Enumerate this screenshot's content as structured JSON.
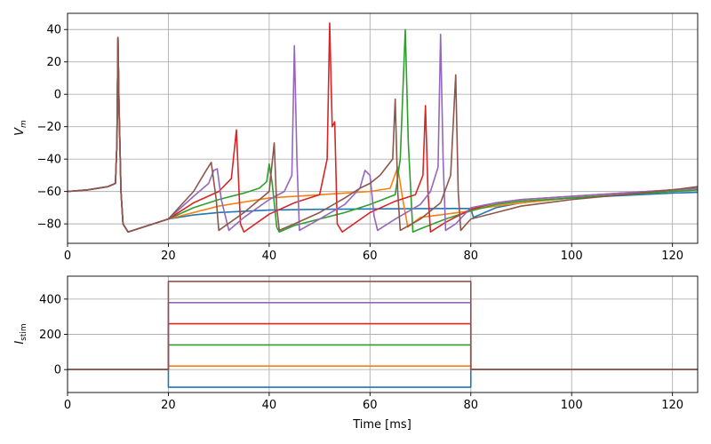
{
  "chart_data": [
    {
      "type": "line",
      "ylabel_main": "V",
      "ylabel_sub": "m",
      "xlim": [
        0,
        125
      ],
      "ylim": [
        -92,
        50
      ],
      "xticks": [
        0,
        20,
        40,
        60,
        80,
        100,
        120
      ],
      "yticks": [
        -80,
        -60,
        -40,
        -20,
        0,
        20,
        40
      ],
      "grid": true,
      "series": [
        {
          "color": "#1f77b4",
          "points": [
            [
              0,
              -60
            ],
            [
              4,
              -59
            ],
            [
              8,
              -57
            ],
            [
              9.5,
              -55
            ],
            [
              9.8,
              -30
            ],
            [
              10,
              35
            ],
            [
              10.2,
              -5
            ],
            [
              10.6,
              -60
            ],
            [
              11,
              -80
            ],
            [
              12,
              -85
            ],
            [
              15,
              -82
            ],
            [
              20,
              -77
            ],
            [
              25,
              -74.5
            ],
            [
              30,
              -73
            ],
            [
              40,
              -71.5
            ],
            [
              50,
              -71
            ],
            [
              60,
              -70.8
            ],
            [
              70,
              -70.6
            ],
            [
              80,
              -70.5
            ],
            [
              80.5,
              -76
            ],
            [
              85,
              -70
            ],
            [
              90,
              -67
            ],
            [
              100,
              -64
            ],
            [
              110,
              -62.5
            ],
            [
              120,
              -61
            ],
            [
              125,
              -60.5
            ]
          ]
        },
        {
          "color": "#ff7f0e",
          "points": [
            [
              0,
              -60
            ],
            [
              4,
              -59
            ],
            [
              8,
              -57
            ],
            [
              9.5,
              -55
            ],
            [
              9.8,
              -30
            ],
            [
              10,
              35
            ],
            [
              10.2,
              -5
            ],
            [
              10.6,
              -60
            ],
            [
              11,
              -80
            ],
            [
              12,
              -85
            ],
            [
              15,
              -82
            ],
            [
              20,
              -77
            ],
            [
              30,
              -69
            ],
            [
              40,
              -64
            ],
            [
              50,
              -62
            ],
            [
              60,
              -60
            ],
            [
              64,
              -58
            ],
            [
              65.5,
              -45
            ],
            [
              66.5,
              -65
            ],
            [
              67.5,
              -82
            ],
            [
              70,
              -76
            ],
            [
              80,
              -72
            ],
            [
              80.5,
              -71
            ],
            [
              85,
              -69
            ],
            [
              90,
              -67
            ],
            [
              100,
              -64
            ],
            [
              110,
              -62
            ],
            [
              120,
              -60
            ],
            [
              125,
              -59
            ]
          ]
        },
        {
          "color": "#2ca02c",
          "points": [
            [
              0,
              -60
            ],
            [
              4,
              -59
            ],
            [
              8,
              -57
            ],
            [
              9.5,
              -55
            ],
            [
              9.8,
              -30
            ],
            [
              10,
              35
            ],
            [
              10.2,
              -5
            ],
            [
              10.6,
              -60
            ],
            [
              11,
              -80
            ],
            [
              12,
              -85
            ],
            [
              15,
              -82
            ],
            [
              20,
              -77
            ],
            [
              25,
              -70
            ],
            [
              30,
              -65
            ],
            [
              35,
              -61
            ],
            [
              38,
              -58
            ],
            [
              39.5,
              -54
            ],
            [
              40,
              -43
            ],
            [
              40.6,
              -55
            ],
            [
              41.5,
              -82
            ],
            [
              42,
              -85
            ],
            [
              45,
              -81
            ],
            [
              50,
              -77
            ],
            [
              55,
              -73
            ],
            [
              60,
              -68
            ],
            [
              65,
              -62
            ],
            [
              66,
              -40
            ],
            [
              67,
              40
            ],
            [
              67.6,
              -30
            ],
            [
              68.5,
              -85
            ],
            [
              70,
              -83
            ],
            [
              75,
              -77
            ],
            [
              80,
              -72
            ],
            [
              85,
              -68
            ],
            [
              90,
              -66
            ],
            [
              100,
              -64
            ],
            [
              110,
              -62
            ],
            [
              120,
              -60
            ],
            [
              125,
              -59
            ]
          ]
        },
        {
          "color": "#d62728",
          "points": [
            [
              0,
              -60
            ],
            [
              4,
              -59
            ],
            [
              8,
              -57
            ],
            [
              9.5,
              -55
            ],
            [
              9.8,
              -30
            ],
            [
              10,
              35
            ],
            [
              10.2,
              -5
            ],
            [
              10.6,
              -60
            ],
            [
              11,
              -80
            ],
            [
              12,
              -85
            ],
            [
              15,
              -82
            ],
            [
              20,
              -77
            ],
            [
              25,
              -67
            ],
            [
              30,
              -60
            ],
            [
              32.5,
              -52
            ],
            [
              33.5,
              -22
            ],
            [
              34.3,
              -80
            ],
            [
              35,
              -85
            ],
            [
              40,
              -74
            ],
            [
              45,
              -67
            ],
            [
              50,
              -62
            ],
            [
              51.5,
              -40
            ],
            [
              52,
              44
            ],
            [
              52.5,
              -20
            ],
            [
              53,
              -17
            ],
            [
              53.5,
              -80
            ],
            [
              54.5,
              -85
            ],
            [
              60,
              -73
            ],
            [
              65,
              -66
            ],
            [
              69,
              -62
            ],
            [
              70.5,
              -50
            ],
            [
              71,
              -7
            ],
            [
              71.5,
              -60
            ],
            [
              72,
              -85
            ],
            [
              75,
              -79
            ],
            [
              80,
              -71
            ],
            [
              85,
              -67
            ],
            [
              90,
              -65
            ],
            [
              100,
              -63
            ],
            [
              110,
              -61
            ],
            [
              120,
              -59
            ],
            [
              125,
              -58
            ]
          ]
        },
        {
          "color": "#9467bd",
          "points": [
            [
              0,
              -60
            ],
            [
              4,
              -59
            ],
            [
              8,
              -57
            ],
            [
              9.5,
              -55
            ],
            [
              9.8,
              -30
            ],
            [
              10,
              35
            ],
            [
              10.2,
              -5
            ],
            [
              10.6,
              -60
            ],
            [
              11,
              -80
            ],
            [
              12,
              -85
            ],
            [
              15,
              -82
            ],
            [
              20,
              -77
            ],
            [
              25,
              -63
            ],
            [
              28,
              -55
            ],
            [
              29,
              -47
            ],
            [
              29.7,
              -46
            ],
            [
              30.5,
              -65
            ],
            [
              32,
              -84
            ],
            [
              35,
              -76
            ],
            [
              40,
              -65
            ],
            [
              43,
              -60
            ],
            [
              44.5,
              -50
            ],
            [
              45,
              30
            ],
            [
              45.5,
              -40
            ],
            [
              46,
              -84
            ],
            [
              50,
              -77
            ],
            [
              55,
              -68
            ],
            [
              58,
              -58
            ],
            [
              59,
              -47
            ],
            [
              60,
              -50
            ],
            [
              60.8,
              -75
            ],
            [
              61.5,
              -84
            ],
            [
              65,
              -77
            ],
            [
              70,
              -68
            ],
            [
              72,
              -60
            ],
            [
              73.5,
              -45
            ],
            [
              74,
              37
            ],
            [
              74.5,
              -40
            ],
            [
              75,
              -84
            ],
            [
              77,
              -80
            ],
            [
              80,
              -70
            ],
            [
              85,
              -67
            ],
            [
              90,
              -65
            ],
            [
              100,
              -63
            ],
            [
              110,
              -61
            ],
            [
              120,
              -59
            ],
            [
              125,
              -58
            ]
          ]
        },
        {
          "color": "#8c564b",
          "points": [
            [
              0,
              -60
            ],
            [
              4,
              -59
            ],
            [
              8,
              -57
            ],
            [
              9.5,
              -55
            ],
            [
              9.8,
              -30
            ],
            [
              10,
              35
            ],
            [
              10.2,
              -5
            ],
            [
              10.6,
              -60
            ],
            [
              11,
              -80
            ],
            [
              12,
              -85
            ],
            [
              15,
              -82
            ],
            [
              20,
              -77
            ],
            [
              25,
              -60
            ],
            [
              27.5,
              -47
            ],
            [
              28.5,
              -42
            ],
            [
              29.5,
              -65
            ],
            [
              30,
              -84
            ],
            [
              35,
              -73
            ],
            [
              40,
              -60
            ],
            [
              40.5,
              -45
            ],
            [
              41,
              -30
            ],
            [
              41.5,
              -70
            ],
            [
              42,
              -84
            ],
            [
              45,
              -80
            ],
            [
              50,
              -73
            ],
            [
              55,
              -64
            ],
            [
              58,
              -58
            ],
            [
              60,
              -55
            ],
            [
              62,
              -50
            ],
            [
              64.5,
              -40
            ],
            [
              65,
              -3
            ],
            [
              65.5,
              -60
            ],
            [
              66,
              -84
            ],
            [
              70,
              -77
            ],
            [
              74,
              -67
            ],
            [
              76,
              -50
            ],
            [
              77,
              12
            ],
            [
              77.5,
              -60
            ],
            [
              78,
              -84
            ],
            [
              80,
              -77
            ],
            [
              85,
              -73
            ],
            [
              90,
              -69
            ],
            [
              100,
              -65
            ],
            [
              110,
              -62
            ],
            [
              120,
              -59
            ],
            [
              125,
              -57
            ]
          ]
        }
      ]
    },
    {
      "type": "line",
      "xlabel": "Time [ms]",
      "ylabel_main": "I",
      "ylabel_sub": "stim",
      "xlim": [
        0,
        125
      ],
      "ylim": [
        -130,
        530
      ],
      "xticks": [
        0,
        20,
        40,
        60,
        80,
        100,
        120
      ],
      "yticks": [
        0,
        200,
        400
      ],
      "grid": true,
      "step_on": 20,
      "step_off": 80,
      "series": [
        {
          "color": "#1f77b4",
          "level": -100
        },
        {
          "color": "#ff7f0e",
          "level": 20
        },
        {
          "color": "#2ca02c",
          "level": 140
        },
        {
          "color": "#d62728",
          "level": 260
        },
        {
          "color": "#9467bd",
          "level": 380
        },
        {
          "color": "#8c564b",
          "level": 500
        }
      ]
    }
  ]
}
